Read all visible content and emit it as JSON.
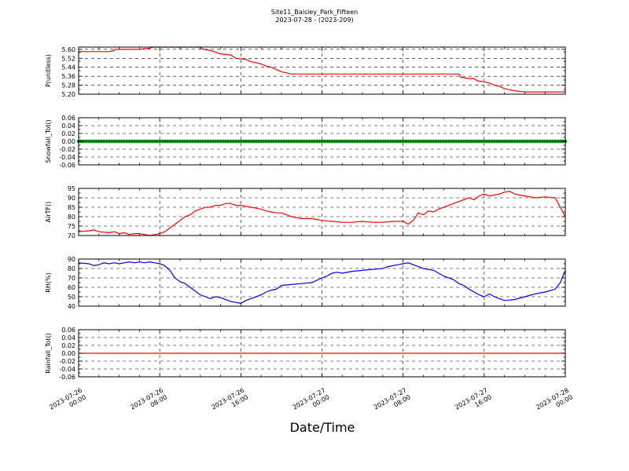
{
  "chart_data": {
    "type": "line",
    "title": "Site11_Baisley_Park_Fifteen",
    "subtitle": "2023-07-28 - (2023-209)",
    "xlabel": "Date/Time",
    "x_ticks": [
      "2023-07-26\n00:00",
      "2023-07-26\n08:00",
      "2023-07-26\n16:00",
      "2023-07-27\n00:00",
      "2023-07-27\n08:00",
      "2023-07-27\n16:00",
      "2023-07-28\n00:00"
    ],
    "xlim": [
      0,
      48
    ],
    "grid": true,
    "panels": [
      {
        "ylabel": "P(unitless)",
        "ylim": [
          5.2,
          5.62
        ],
        "yticks": [
          "5.20",
          "5.28",
          "5.36",
          "5.44",
          "5.52",
          "5.60"
        ],
        "color": "#ff0000",
        "series_type": "line",
        "points": [
          [
            0,
            5.57
          ],
          [
            0.3,
            5.58
          ],
          [
            1,
            5.58
          ],
          [
            2,
            5.58
          ],
          [
            3,
            5.58
          ],
          [
            3.5,
            5.59
          ],
          [
            3.6,
            5.6
          ],
          [
            5,
            5.6
          ],
          [
            6,
            5.6
          ],
          [
            7,
            5.61
          ],
          [
            7.3,
            5.62
          ],
          [
            9,
            5.62
          ],
          [
            11,
            5.62
          ],
          [
            12,
            5.62
          ],
          [
            12.3,
            5.6
          ],
          [
            13,
            5.59
          ],
          [
            14,
            5.56
          ],
          [
            15,
            5.55
          ],
          [
            15.5,
            5.52
          ],
          [
            16.5,
            5.51
          ],
          [
            17,
            5.49
          ],
          [
            18,
            5.47
          ],
          [
            18.5,
            5.45
          ],
          [
            19,
            5.44
          ],
          [
            19.5,
            5.42
          ],
          [
            20,
            5.4
          ],
          [
            21,
            5.38
          ],
          [
            22,
            5.38
          ],
          [
            24,
            5.38
          ],
          [
            26,
            5.38
          ],
          [
            28,
            5.38
          ],
          [
            30,
            5.38
          ],
          [
            32,
            5.38
          ],
          [
            34,
            5.38
          ],
          [
            36,
            5.38
          ],
          [
            37.5,
            5.38
          ],
          [
            37.7,
            5.35
          ],
          [
            38.5,
            5.34
          ],
          [
            39,
            5.34
          ],
          [
            39.3,
            5.32
          ],
          [
            40,
            5.31
          ],
          [
            40.5,
            5.3
          ],
          [
            41,
            5.28
          ],
          [
            41.5,
            5.27
          ],
          [
            42,
            5.25
          ],
          [
            43,
            5.23
          ],
          [
            44,
            5.22
          ],
          [
            46,
            5.22
          ],
          [
            48,
            5.22
          ]
        ]
      },
      {
        "ylabel": "Snowfall_Tot()",
        "ylim": [
          -0.06,
          0.06
        ],
        "yticks": [
          "-0.06",
          "-0.04",
          "-0.02",
          "0.00",
          "0.02",
          "0.04",
          "0.06"
        ],
        "color": "#008000",
        "series_type": "markers",
        "constant": 0.0,
        "count": 193
      },
      {
        "ylabel": "AirTF()",
        "ylim": [
          70,
          95
        ],
        "yticks": [
          "70",
          "75",
          "80",
          "85",
          "90",
          "95"
        ],
        "color": "#ff0000",
        "series_type": "line",
        "points": [
          [
            0,
            72
          ],
          [
            1,
            72.5
          ],
          [
            1.5,
            73
          ],
          [
            2,
            72
          ],
          [
            3,
            71.5
          ],
          [
            3.5,
            72
          ],
          [
            4,
            71
          ],
          [
            4.5,
            71.5
          ],
          [
            5,
            70.5
          ],
          [
            5.5,
            71
          ],
          [
            6,
            71
          ],
          [
            6.5,
            70.5
          ],
          [
            7,
            70
          ],
          [
            7.5,
            70.5
          ],
          [
            8,
            71
          ],
          [
            8.5,
            72
          ],
          [
            9,
            74
          ],
          [
            9.5,
            76
          ],
          [
            10,
            78
          ],
          [
            10.5,
            80
          ],
          [
            11,
            81
          ],
          [
            11.5,
            83
          ],
          [
            12,
            84
          ],
          [
            12.5,
            85
          ],
          [
            13,
            85
          ],
          [
            13.5,
            86
          ],
          [
            14,
            86
          ],
          [
            14.5,
            87
          ],
          [
            15,
            87
          ],
          [
            15.5,
            86
          ],
          [
            16,
            86
          ],
          [
            16.5,
            85.5
          ],
          [
            17,
            85
          ],
          [
            17.5,
            84.5
          ],
          [
            18,
            84
          ],
          [
            18.5,
            83
          ],
          [
            19,
            82.5
          ],
          [
            19.5,
            82
          ],
          [
            20,
            82
          ],
          [
            21,
            80
          ],
          [
            22,
            79
          ],
          [
            23,
            79
          ],
          [
            24,
            78
          ],
          [
            25,
            77.5
          ],
          [
            26,
            77
          ],
          [
            27,
            77
          ],
          [
            28,
            77.5
          ],
          [
            29,
            77
          ],
          [
            30,
            77
          ],
          [
            31,
            77.5
          ],
          [
            32,
            77.5
          ],
          [
            32.5,
            76
          ],
          [
            33,
            78
          ],
          [
            33.5,
            82
          ],
          [
            34,
            81
          ],
          [
            34.5,
            83
          ],
          [
            35,
            82.5
          ],
          [
            35.5,
            84
          ],
          [
            36,
            85
          ],
          [
            37,
            87
          ],
          [
            38,
            89
          ],
          [
            38.5,
            90
          ],
          [
            39,
            89
          ],
          [
            39.5,
            91
          ],
          [
            40,
            92
          ],
          [
            40.5,
            91
          ],
          [
            41,
            91.5
          ],
          [
            41.5,
            92
          ],
          [
            42,
            93
          ],
          [
            42.5,
            93.5
          ],
          [
            43,
            92
          ],
          [
            44,
            91
          ],
          [
            45,
            90
          ],
          [
            46,
            90.5
          ],
          [
            47,
            90
          ],
          [
            47.5,
            85
          ],
          [
            48,
            80
          ]
        ]
      },
      {
        "ylabel": "RH(%)",
        "ylim": [
          40,
          90
        ],
        "yticks": [
          "40",
          "50",
          "60",
          "70",
          "80",
          "90"
        ],
        "color": "#0000ff",
        "series_type": "line",
        "points": [
          [
            0,
            86
          ],
          [
            1,
            85
          ],
          [
            1.5,
            83
          ],
          [
            2,
            84
          ],
          [
            2.5,
            86
          ],
          [
            3,
            85
          ],
          [
            3.5,
            86
          ],
          [
            4,
            85
          ],
          [
            4.5,
            86
          ],
          [
            5,
            87
          ],
          [
            5.5,
            86
          ],
          [
            6,
            87
          ],
          [
            6.5,
            86
          ],
          [
            7,
            87
          ],
          [
            7.5,
            86
          ],
          [
            8,
            85
          ],
          [
            8.5,
            83
          ],
          [
            9,
            78
          ],
          [
            9.5,
            70
          ],
          [
            10,
            66
          ],
          [
            10.5,
            64
          ],
          [
            11,
            60
          ],
          [
            11.5,
            56
          ],
          [
            12,
            52
          ],
          [
            12.5,
            50
          ],
          [
            13,
            48
          ],
          [
            13.5,
            50
          ],
          [
            14,
            49
          ],
          [
            14.5,
            47
          ],
          [
            15,
            45
          ],
          [
            15.5,
            44
          ],
          [
            16,
            43
          ],
          [
            16.5,
            46
          ],
          [
            17,
            48
          ],
          [
            17.5,
            50
          ],
          [
            18,
            52
          ],
          [
            18.5,
            55
          ],
          [
            19,
            57
          ],
          [
            19.5,
            58
          ],
          [
            20,
            62
          ],
          [
            21,
            63
          ],
          [
            22,
            64
          ],
          [
            23,
            65
          ],
          [
            24,
            70
          ],
          [
            24.5,
            72
          ],
          [
            25,
            75
          ],
          [
            25.5,
            76
          ],
          [
            26,
            75
          ],
          [
            27,
            77
          ],
          [
            28,
            78
          ],
          [
            29,
            79
          ],
          [
            30,
            80
          ],
          [
            30.5,
            82
          ],
          [
            31,
            83
          ],
          [
            32,
            85
          ],
          [
            32.5,
            86
          ],
          [
            33,
            84
          ],
          [
            34,
            80
          ],
          [
            35,
            78
          ],
          [
            36,
            72
          ],
          [
            37,
            68
          ],
          [
            37.5,
            64
          ],
          [
            38,
            62
          ],
          [
            38.5,
            58
          ],
          [
            39,
            55
          ],
          [
            39.5,
            52
          ],
          [
            40,
            50
          ],
          [
            40.5,
            53
          ],
          [
            41,
            50
          ],
          [
            41.5,
            48
          ],
          [
            42,
            46
          ],
          [
            43,
            47
          ],
          [
            44,
            50
          ],
          [
            45,
            53
          ],
          [
            46,
            55
          ],
          [
            47,
            58
          ],
          [
            47.5,
            65
          ],
          [
            48,
            78
          ]
        ]
      },
      {
        "ylabel": "Rainfall_Tot()",
        "ylim": [
          -0.06,
          0.06
        ],
        "yticks": [
          "-0.06",
          "-0.04",
          "-0.02",
          "0.00",
          "0.02",
          "0.04",
          "0.06"
        ],
        "color": "#ff0000",
        "series_type": "line",
        "points": [
          [
            0,
            0
          ],
          [
            48,
            0
          ]
        ]
      }
    ]
  }
}
